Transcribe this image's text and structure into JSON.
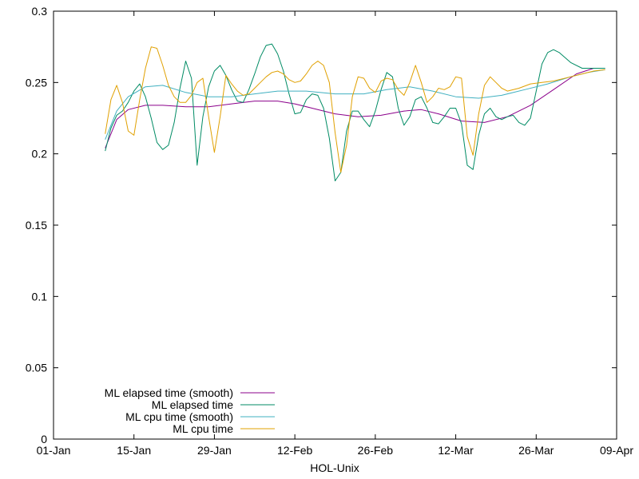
{
  "chart_data": {
    "type": "line",
    "xlabel": "HOL-Unix",
    "ylabel": "",
    "title": "",
    "ylim": [
      0,
      0.3
    ],
    "xlim": [
      "01-Jan",
      "09-Apr"
    ],
    "x_ticks": [
      "01-Jan",
      "15-Jan",
      "29-Jan",
      "12-Feb",
      "26-Feb",
      "12-Mar",
      "26-Mar",
      "09-Apr"
    ],
    "y_ticks": [
      "0",
      "0.05",
      "0.1",
      "0.15",
      "0.2",
      "0.25",
      "0.3"
    ],
    "grid": false,
    "legend_position": "bottom-left",
    "series": [
      {
        "name": "ML elapsed time (smooth)",
        "color": "#8b008b",
        "points": [
          [
            "10-Jan",
            0.204
          ],
          [
            "12-Jan",
            0.224
          ],
          [
            "14-Jan",
            0.231
          ],
          [
            "17-Jan",
            0.234
          ],
          [
            "20-Jan",
            0.234
          ],
          [
            "24-Jan",
            0.233
          ],
          [
            "28-Jan",
            0.233
          ],
          [
            "01-Feb",
            0.235
          ],
          [
            "05-Feb",
            0.237
          ],
          [
            "09-Feb",
            0.237
          ],
          [
            "12-Feb",
            0.235
          ],
          [
            "15-Feb",
            0.232
          ],
          [
            "19-Feb",
            0.228
          ],
          [
            "23-Feb",
            0.226
          ],
          [
            "27-Feb",
            0.227
          ],
          [
            "03-Mar",
            0.23
          ],
          [
            "06-Mar",
            0.231
          ],
          [
            "09-Mar",
            0.228
          ],
          [
            "13-Mar",
            0.223
          ],
          [
            "17-Mar",
            0.222
          ],
          [
            "21-Mar",
            0.226
          ],
          [
            "25-Mar",
            0.234
          ],
          [
            "29-Mar",
            0.245
          ],
          [
            "02-Apr",
            0.256
          ],
          [
            "05-Apr",
            0.26
          ],
          [
            "07-Apr",
            0.26
          ]
        ]
      },
      {
        "name": "ML elapsed time",
        "color": "#008b64",
        "points": [
          [
            "10-Jan",
            0.202
          ],
          [
            "11-Jan",
            0.218
          ],
          [
            "12-Jan",
            0.227
          ],
          [
            "13-Jan",
            0.23
          ],
          [
            "14-Jan",
            0.236
          ],
          [
            "15-Jan",
            0.244
          ],
          [
            "16-Jan",
            0.249
          ],
          [
            "17-Jan",
            0.24
          ],
          [
            "18-Jan",
            0.225
          ],
          [
            "19-Jan",
            0.208
          ],
          [
            "20-Jan",
            0.203
          ],
          [
            "21-Jan",
            0.206
          ],
          [
            "22-Jan",
            0.222
          ],
          [
            "23-Jan",
            0.246
          ],
          [
            "24-Jan",
            0.265
          ],
          [
            "25-Jan",
            0.253
          ],
          [
            "26-Jan",
            0.192
          ],
          [
            "27-Jan",
            0.226
          ],
          [
            "28-Jan",
            0.247
          ],
          [
            "29-Jan",
            0.258
          ],
          [
            "30-Jan",
            0.262
          ],
          [
            "31-Jan",
            0.255
          ],
          [
            "01-Feb",
            0.245
          ],
          [
            "02-Feb",
            0.237
          ],
          [
            "03-Feb",
            0.236
          ],
          [
            "04-Feb",
            0.245
          ],
          [
            "05-Feb",
            0.256
          ],
          [
            "06-Feb",
            0.268
          ],
          [
            "07-Feb",
            0.276
          ],
          [
            "08-Feb",
            0.277
          ],
          [
            "09-Feb",
            0.27
          ],
          [
            "10-Feb",
            0.258
          ],
          [
            "11-Feb",
            0.242
          ],
          [
            "12-Feb",
            0.228
          ],
          [
            "13-Feb",
            0.229
          ],
          [
            "14-Feb",
            0.238
          ],
          [
            "15-Feb",
            0.242
          ],
          [
            "16-Feb",
            0.241
          ],
          [
            "17-Feb",
            0.232
          ],
          [
            "18-Feb",
            0.211
          ],
          [
            "19-Feb",
            0.181
          ],
          [
            "20-Feb",
            0.187
          ],
          [
            "21-Feb",
            0.216
          ],
          [
            "22-Feb",
            0.23
          ],
          [
            "23-Feb",
            0.23
          ],
          [
            "24-Feb",
            0.224
          ],
          [
            "25-Feb",
            0.219
          ],
          [
            "26-Feb",
            0.23
          ],
          [
            "27-Feb",
            0.245
          ],
          [
            "28-Feb",
            0.257
          ],
          [
            "01-Mar",
            0.254
          ],
          [
            "02-Mar",
            0.232
          ],
          [
            "03-Mar",
            0.22
          ],
          [
            "04-Mar",
            0.226
          ],
          [
            "05-Mar",
            0.238
          ],
          [
            "06-Mar",
            0.24
          ],
          [
            "07-Mar",
            0.232
          ],
          [
            "08-Mar",
            0.222
          ],
          [
            "09-Mar",
            0.221
          ],
          [
            "10-Mar",
            0.226
          ],
          [
            "11-Mar",
            0.232
          ],
          [
            "12-Mar",
            0.232
          ],
          [
            "13-Mar",
            0.221
          ],
          [
            "14-Mar",
            0.192
          ],
          [
            "15-Mar",
            0.189
          ],
          [
            "16-Mar",
            0.213
          ],
          [
            "17-Mar",
            0.228
          ],
          [
            "18-Mar",
            0.232
          ],
          [
            "19-Mar",
            0.226
          ],
          [
            "20-Mar",
            0.224
          ],
          [
            "21-Mar",
            0.226
          ],
          [
            "22-Mar",
            0.227
          ],
          [
            "23-Mar",
            0.222
          ],
          [
            "24-Mar",
            0.22
          ],
          [
            "25-Mar",
            0.225
          ],
          [
            "26-Mar",
            0.244
          ],
          [
            "27-Mar",
            0.263
          ],
          [
            "28-Mar",
            0.271
          ],
          [
            "29-Mar",
            0.273
          ],
          [
            "30-Mar",
            0.271
          ],
          [
            "01-Apr",
            0.264
          ],
          [
            "03-Apr",
            0.26
          ],
          [
            "05-Apr",
            0.26
          ],
          [
            "07-Apr",
            0.26
          ]
        ]
      },
      {
        "name": "ML cpu time (smooth)",
        "color": "#40b0c0",
        "points": [
          [
            "10-Jan",
            0.21
          ],
          [
            "12-Jan",
            0.23
          ],
          [
            "14-Jan",
            0.24
          ],
          [
            "17-Jan",
            0.247
          ],
          [
            "20-Jan",
            0.248
          ],
          [
            "24-Jan",
            0.243
          ],
          [
            "28-Jan",
            0.24
          ],
          [
            "01-Feb",
            0.24
          ],
          [
            "05-Feb",
            0.242
          ],
          [
            "09-Feb",
            0.244
          ],
          [
            "14-Feb",
            0.244
          ],
          [
            "19-Feb",
            0.242
          ],
          [
            "24-Feb",
            0.242
          ],
          [
            "28-Feb",
            0.245
          ],
          [
            "04-Mar",
            0.247
          ],
          [
            "08-Mar",
            0.244
          ],
          [
            "12-Mar",
            0.24
          ],
          [
            "16-Mar",
            0.239
          ],
          [
            "20-Mar",
            0.241
          ],
          [
            "24-Mar",
            0.245
          ],
          [
            "28-Mar",
            0.249
          ],
          [
            "01-Apr",
            0.254
          ],
          [
            "04-Apr",
            0.257
          ],
          [
            "07-Apr",
            0.259
          ]
        ]
      },
      {
        "name": "ML cpu time",
        "color": "#e0a000",
        "points": [
          [
            "10-Jan",
            0.214
          ],
          [
            "11-Jan",
            0.238
          ],
          [
            "12-Jan",
            0.248
          ],
          [
            "13-Jan",
            0.236
          ],
          [
            "14-Jan",
            0.216
          ],
          [
            "15-Jan",
            0.213
          ],
          [
            "16-Jan",
            0.238
          ],
          [
            "17-Jan",
            0.26
          ],
          [
            "18-Jan",
            0.275
          ],
          [
            "19-Jan",
            0.274
          ],
          [
            "20-Jan",
            0.262
          ],
          [
            "21-Jan",
            0.248
          ],
          [
            "22-Jan",
            0.24
          ],
          [
            "23-Jan",
            0.236
          ],
          [
            "24-Jan",
            0.236
          ],
          [
            "25-Jan",
            0.241
          ],
          [
            "26-Jan",
            0.25
          ],
          [
            "27-Jan",
            0.253
          ],
          [
            "28-Jan",
            0.226
          ],
          [
            "29-Jan",
            0.201
          ],
          [
            "30-Jan",
            0.226
          ],
          [
            "31-Jan",
            0.255
          ],
          [
            "01-Feb",
            0.249
          ],
          [
            "02-Feb",
            0.244
          ],
          [
            "03-Feb",
            0.241
          ],
          [
            "04-Feb",
            0.242
          ],
          [
            "05-Feb",
            0.246
          ],
          [
            "06-Feb",
            0.25
          ],
          [
            "07-Feb",
            0.254
          ],
          [
            "08-Feb",
            0.257
          ],
          [
            "09-Feb",
            0.258
          ],
          [
            "10-Feb",
            0.256
          ],
          [
            "11-Feb",
            0.252
          ],
          [
            "12-Feb",
            0.25
          ],
          [
            "13-Feb",
            0.251
          ],
          [
            "14-Feb",
            0.256
          ],
          [
            "15-Feb",
            0.262
          ],
          [
            "16-Feb",
            0.265
          ],
          [
            "17-Feb",
            0.262
          ],
          [
            "18-Feb",
            0.25
          ],
          [
            "19-Feb",
            0.215
          ],
          [
            "20-Feb",
            0.187
          ],
          [
            "21-Feb",
            0.206
          ],
          [
            "22-Feb",
            0.24
          ],
          [
            "23-Feb",
            0.254
          ],
          [
            "24-Feb",
            0.253
          ],
          [
            "25-Feb",
            0.246
          ],
          [
            "26-Feb",
            0.243
          ],
          [
            "27-Feb",
            0.251
          ],
          [
            "28-Feb",
            0.253
          ],
          [
            "01-Mar",
            0.252
          ],
          [
            "02-Mar",
            0.245
          ],
          [
            "03-Mar",
            0.241
          ],
          [
            "04-Mar",
            0.25
          ],
          [
            "05-Mar",
            0.262
          ],
          [
            "06-Mar",
            0.25
          ],
          [
            "07-Mar",
            0.236
          ],
          [
            "08-Mar",
            0.24
          ],
          [
            "09-Mar",
            0.246
          ],
          [
            "10-Mar",
            0.245
          ],
          [
            "11-Mar",
            0.247
          ],
          [
            "12-Mar",
            0.254
          ],
          [
            "13-Mar",
            0.253
          ],
          [
            "14-Mar",
            0.212
          ],
          [
            "15-Mar",
            0.199
          ],
          [
            "16-Mar",
            0.228
          ],
          [
            "17-Mar",
            0.248
          ],
          [
            "18-Mar",
            0.254
          ],
          [
            "19-Mar",
            0.25
          ],
          [
            "20-Mar",
            0.246
          ],
          [
            "21-Mar",
            0.244
          ],
          [
            "23-Mar",
            0.246
          ],
          [
            "25-Mar",
            0.249
          ],
          [
            "27-Mar",
            0.25
          ],
          [
            "29-Mar",
            0.251
          ],
          [
            "01-Apr",
            0.254
          ],
          [
            "03-Apr",
            0.256
          ],
          [
            "05-Apr",
            0.258
          ],
          [
            "07-Apr",
            0.259
          ]
        ]
      }
    ]
  }
}
